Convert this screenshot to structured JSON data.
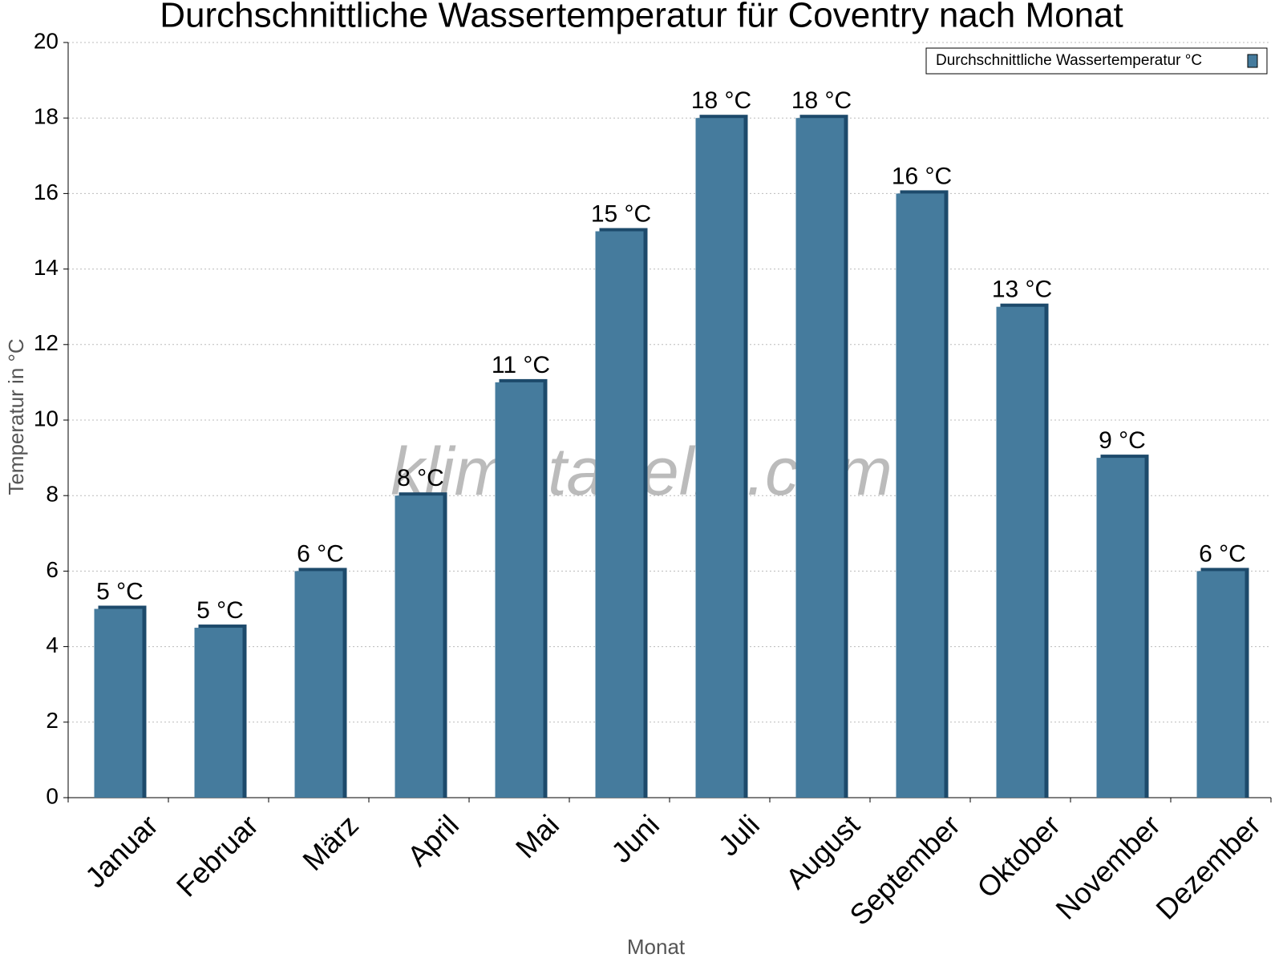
{
  "chart_data": {
    "type": "bar",
    "title": "Durchschnittliche Wassertemperatur für Coventry nach Monat",
    "x_label": "Monat",
    "y_label": "Temperatur in °C",
    "watermark": "klimatabelle.com",
    "categories": [
      "Januar",
      "Februar",
      "März",
      "April",
      "Mai",
      "Juni",
      "Juli",
      "August",
      "September",
      "Oktober",
      "November",
      "Dezember"
    ],
    "series": [
      {
        "name": "Durchschnittliche Wassertemperatur °C",
        "color": "#457b9d",
        "values": [
          5,
          4.5,
          6,
          8,
          11,
          15,
          18,
          18,
          16,
          13,
          9,
          6
        ],
        "value_labels": [
          "5 °C",
          "5 °C",
          "6 °C",
          "8 °C",
          "11 °C",
          "15 °C",
          "18 °C",
          "18 °C",
          "16 °C",
          "13 °C",
          "9 °C",
          "6 °C"
        ]
      }
    ],
    "ylim": [
      0,
      20
    ],
    "yticks": [
      0,
      2,
      4,
      6,
      8,
      10,
      12,
      14,
      16,
      18,
      20
    ],
    "grid": true,
    "legend": "top-right"
  }
}
